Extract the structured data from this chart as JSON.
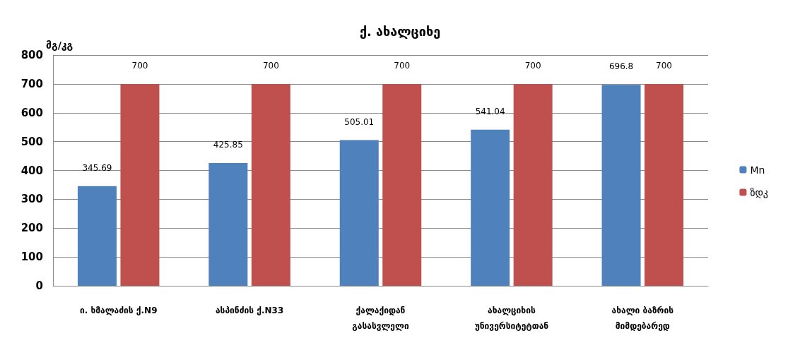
{
  "chart_data": {
    "type": "bar",
    "title": "ქ. ახალციხე",
    "ylabel": "მგ/კგ",
    "categories": [
      "ი. ხმალაძის ქ.N9",
      "ასპინძის ქ.N33",
      "ქალაქიდან გასასვლელი",
      "ახალციხის უნივერსიტეტთან",
      "ახალი ბაზრის მიმდებარედ"
    ],
    "series": [
      {
        "name": "Mn",
        "color": "#4f81bd",
        "values": [
          345.69,
          425.85,
          505.01,
          541.04,
          696.8
        ]
      },
      {
        "name": "ზდკ",
        "color": "#c0504d",
        "values": [
          700,
          700,
          700,
          700,
          700
        ]
      }
    ],
    "ylim": [
      0,
      800
    ],
    "yticks": [
      0,
      100,
      200,
      300,
      400,
      500,
      600,
      700,
      800
    ],
    "grid": "y",
    "legend": "right",
    "data_labels": true
  }
}
